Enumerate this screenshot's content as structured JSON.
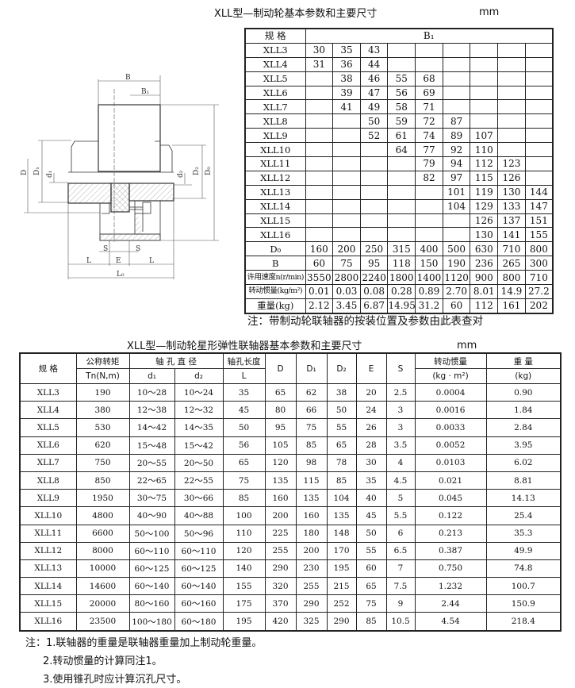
{
  "top": {
    "title": "XLL型—制动轮基本参数和主要尺寸",
    "unit": "mm",
    "header_label": "规 格",
    "header_group": "B₁",
    "rows": [
      {
        "label": "XLL3",
        "values": [
          "30",
          "35",
          "43",
          "",
          "",
          "",
          "",
          "",
          ""
        ]
      },
      {
        "label": "XLL4",
        "values": [
          "31",
          "36",
          "44",
          "",
          "",
          "",
          "",
          "",
          ""
        ]
      },
      {
        "label": "XLL5",
        "values": [
          "",
          "38",
          "46",
          "55",
          "68",
          "",
          "",
          "",
          ""
        ]
      },
      {
        "label": "XLL6",
        "values": [
          "",
          "39",
          "47",
          "56",
          "69",
          "",
          "",
          "",
          ""
        ]
      },
      {
        "label": "XLL7",
        "values": [
          "",
          "41",
          "49",
          "58",
          "71",
          "",
          "",
          "",
          ""
        ]
      },
      {
        "label": "XLL8",
        "values": [
          "",
          "",
          "50",
          "59",
          "72",
          "87",
          "",
          "",
          ""
        ]
      },
      {
        "label": "XLL9",
        "values": [
          "",
          "",
          "52",
          "61",
          "74",
          "89",
          "107",
          "",
          ""
        ]
      },
      {
        "label": "XLL10",
        "values": [
          "",
          "",
          "",
          "64",
          "77",
          "92",
          "110",
          "",
          ""
        ]
      },
      {
        "label": "XLL11",
        "values": [
          "",
          "",
          "",
          "",
          "79",
          "94",
          "112",
          "123",
          ""
        ]
      },
      {
        "label": "XLL12",
        "values": [
          "",
          "",
          "",
          "",
          "82",
          "97",
          "115",
          "126",
          ""
        ]
      },
      {
        "label": "XLL13",
        "values": [
          "",
          "",
          "",
          "",
          "",
          "101",
          "119",
          "130",
          "144"
        ]
      },
      {
        "label": "XLL14",
        "values": [
          "",
          "",
          "",
          "",
          "",
          "104",
          "129",
          "133",
          "147"
        ]
      },
      {
        "label": "XLL15",
        "values": [
          "",
          "",
          "",
          "",
          "",
          "",
          "126",
          "137",
          "151"
        ]
      },
      {
        "label": "XLL16",
        "values": [
          "",
          "",
          "",
          "",
          "",
          "",
          "130",
          "141",
          "155"
        ]
      },
      {
        "label": "D₀",
        "values": [
          "160",
          "200",
          "250",
          "315",
          "400",
          "500",
          "630",
          "710",
          "800"
        ]
      },
      {
        "label": "B",
        "values": [
          "60",
          "75",
          "95",
          "118",
          "150",
          "190",
          "236",
          "265",
          "300"
        ]
      },
      {
        "label": "许用速度n(r/min)",
        "small": true,
        "values": [
          "3550",
          "2800",
          "2240",
          "1800",
          "1400",
          "1120",
          "900",
          "800",
          "710"
        ]
      },
      {
        "label": "转动惯量(kg/m²)",
        "small": true,
        "values": [
          "0.01",
          "0.03",
          "0.08",
          "0.28",
          "0.89",
          "2.70",
          "8.01",
          "14.9",
          "27.2"
        ]
      },
      {
        "label": "重量(kg)",
        "values": [
          "2.12",
          "3.45",
          "6.87",
          "14.95",
          "31.2",
          "60",
          "112",
          "161",
          "202"
        ]
      }
    ],
    "note": "注：带制动轮联轴器的按装位置及参数由此表查对"
  },
  "drawing": {
    "labels": {
      "B": "B",
      "B1": "B₁",
      "D": "D",
      "D1": "D₁",
      "d1": "d₁",
      "d2": "d₂",
      "D2": "D₂",
      "D0": "D₀",
      "S": "S",
      "E": "E",
      "L": "L",
      "L0": "L₀"
    }
  },
  "bottom": {
    "title": "XLL型—制动轮星形弹性联轴器基本参数和主要尺寸",
    "unit": "mm",
    "headers": {
      "spec": "规  格",
      "torque": "公称转矩",
      "torque_unit": "Tn(N,m)",
      "bore": "轴 孔 直 径",
      "d1": "d₁",
      "d2": "d₂",
      "bore_len": "轴孔长度",
      "bore_len_unit": "L",
      "D": "D",
      "D1": "D₁",
      "D2": "D₂",
      "E": "E",
      "S": "S",
      "inertia": "转动惯量",
      "inertia_unit": "(kg · m²)",
      "weight": "重 量",
      "weight_unit": "(kg)"
    },
    "rows": [
      [
        "XLL3",
        "190",
        "10～28",
        "10～24",
        "35",
        "65",
        "62",
        "38",
        "20",
        "2.5",
        "0.0004",
        "0.90"
      ],
      [
        "XLL4",
        "380",
        "12～38",
        "12～32",
        "45",
        "80",
        "66",
        "50",
        "24",
        "3",
        "0.0016",
        "1.84"
      ],
      [
        "XLL5",
        "530",
        "14～42",
        "14～35",
        "50",
        "95",
        "75",
        "55",
        "26",
        "3",
        "0.0033",
        "2.84"
      ],
      [
        "XLL6",
        "620",
        "15～48",
        "15～42",
        "56",
        "105",
        "85",
        "65",
        "28",
        "3.5",
        "0.0052",
        "3.95"
      ],
      [
        "XLL7",
        "750",
        "20～55",
        "20～50",
        "65",
        "120",
        "98",
        "78",
        "30",
        "4",
        "0.0103",
        "6.02"
      ],
      [
        "XLL8",
        "850",
        "22～65",
        "22～55",
        "75",
        "135",
        "115",
        "85",
        "35",
        "4.5",
        "0.021",
        "8.81"
      ],
      [
        "XLL9",
        "1950",
        "30～75",
        "30～66",
        "85",
        "160",
        "135",
        "104",
        "40",
        "5",
        "0.045",
        "14.13"
      ],
      [
        "XLL10",
        "4800",
        "40～90",
        "40～88",
        "100",
        "200",
        "160",
        "135",
        "45",
        "5.5",
        "0.122",
        "25.4"
      ],
      [
        "XLL11",
        "6600",
        "50～100",
        "50～96",
        "110",
        "225",
        "180",
        "148",
        "50",
        "6",
        "0.213",
        "35.3"
      ],
      [
        "XLL12",
        "8000",
        "60～110",
        "60～110",
        "120",
        "255",
        "200",
        "170",
        "55",
        "6.5",
        "0.387",
        "49.9"
      ],
      [
        "XLL13",
        "10000",
        "60～125",
        "60～125",
        "140",
        "290",
        "230",
        "195",
        "60",
        "7",
        "0.750",
        "74.8"
      ],
      [
        "XLL14",
        "14600",
        "60～140",
        "60～140",
        "155",
        "320",
        "255",
        "215",
        "65",
        "7.5",
        "1.232",
        "100.7"
      ],
      [
        "XLL15",
        "20000",
        "80～160",
        "60～160",
        "175",
        "370",
        "290",
        "252",
        "75",
        "9",
        "2.44",
        "150.9"
      ],
      [
        "XLL16",
        "23500",
        "100～180",
        "60～180",
        "195",
        "420",
        "325",
        "290",
        "85",
        "10.5",
        "4.54",
        "218.4"
      ]
    ],
    "notes": [
      "注：1.联轴器的重量是联轴器重量加上制动轮重量。",
      "2.转动惯量的计算同注1。",
      "3.使用锥孔时应计算沉孔尺寸。"
    ]
  }
}
